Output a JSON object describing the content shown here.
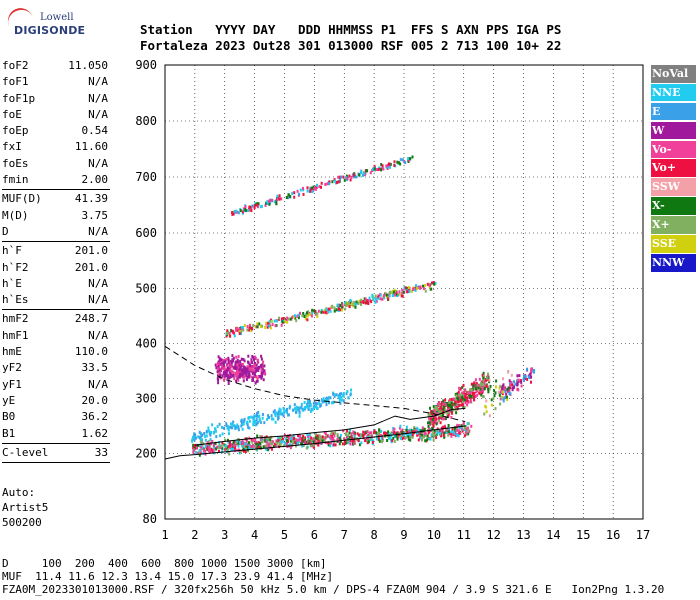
{
  "logo": {
    "line1": "Lowell",
    "line2": "DIGISONDE"
  },
  "header": {
    "line1": "Station   YYYY DAY   DDD HHMMSS P1  FFS S AXN PPS IGA PS",
    "line2": "Fortaleza 2023 Out28 301 013000 RSF 005 2 713 100 10+ 22"
  },
  "params": [
    [
      [
        "foF2",
        "11.050"
      ],
      [
        "foF1",
        "N/A"
      ],
      [
        "foF1p",
        "N/A"
      ],
      [
        "foE",
        "N/A"
      ],
      [
        "foEp",
        "0.54"
      ],
      [
        "fxI",
        "11.60"
      ],
      [
        "foEs",
        "N/A"
      ],
      [
        "fmin",
        "2.00"
      ]
    ],
    [
      [
        "MUF(D)",
        "41.39"
      ],
      [
        "M(D)",
        "3.75"
      ],
      [
        "D",
        "N/A"
      ]
    ],
    [
      [
        "h`F",
        "201.0"
      ],
      [
        "h`F2",
        "201.0"
      ],
      [
        "h`E",
        "N/A"
      ],
      [
        "h`Es",
        "N/A"
      ]
    ],
    [
      [
        "hmF2",
        "248.7"
      ],
      [
        "hmF1",
        "N/A"
      ],
      [
        "hmE",
        "110.0"
      ],
      [
        "yF2",
        "33.5"
      ],
      [
        "yF1",
        "N/A"
      ],
      [
        "yE",
        "20.0"
      ],
      [
        "B0",
        "36.2"
      ],
      [
        "B1",
        "1.62"
      ]
    ],
    [
      [
        "C-level",
        "33"
      ]
    ]
  ],
  "auto": {
    "line1": "Auto:",
    "line2": "Artist5",
    "line3": "500200"
  },
  "legend": [
    {
      "label": "NoVal",
      "color": "#808080"
    },
    {
      "label": "NNE",
      "color": "#22ccf0"
    },
    {
      "label": "E",
      "color": "#3aa0e8"
    },
    {
      "label": "W",
      "color": "#a0189c"
    },
    {
      "label": "Vo-",
      "color": "#f0409a"
    },
    {
      "label": "Vo+",
      "color": "#ee1040"
    },
    {
      "label": "SSW",
      "color": "#f4a0a8"
    },
    {
      "label": "X-",
      "color": "#107810"
    },
    {
      "label": "X+",
      "color": "#80b060"
    },
    {
      "label": "SSE",
      "color": "#d0d010"
    },
    {
      "label": "NNW",
      "color": "#1818c8"
    }
  ],
  "footer": {
    "line1": "D     100  200  400  600  800 1000 1500 3000 [km]",
    "line2": "MUF  11.4 11.6 12.3 13.4 15.0 17.3 23.9 41.4 [MHz]",
    "line3": "FZA0M_2023301013000.RSF / 320fx256h 50 kHz 5.0 km / DPS-4 FZA0M 904 / 3.9 S 321.6 E   Ion2Png 1.3.20"
  },
  "chart_data": {
    "type": "scatter",
    "title": "",
    "xlabel": "",
    "ylabel": "",
    "xlim": [
      1,
      17
    ],
    "ylim": [
      80,
      900
    ],
    "xticks": [
      1,
      2,
      3,
      4,
      5,
      6,
      7,
      8,
      9,
      10,
      11,
      12,
      13,
      14,
      15,
      16,
      17
    ],
    "yticks": [
      80,
      200,
      300,
      400,
      500,
      600,
      700,
      800,
      900
    ],
    "grid": true,
    "clusters": [
      {
        "name": "O-trace",
        "color": "#ee1040",
        "x": [
          1.9,
          11.2
        ],
        "y": [
          212,
          245
        ],
        "jitter": 16,
        "n": 900,
        "colors": [
          "#ee1040",
          "#f0409a",
          "#107810",
          "#80b060",
          "#22ccf0"
        ]
      },
      {
        "name": "O-trace upper",
        "color": "#ee1040",
        "x": [
          9.8,
          11.8
        ],
        "y": [
          265,
          335
        ],
        "jitter": 22,
        "n": 420,
        "colors": [
          "#ee1040",
          "#107810",
          "#80b060",
          "#f0409a"
        ]
      },
      {
        "name": "cyan spread",
        "color": "#22ccf0",
        "x": [
          1.9,
          7.2
        ],
        "y": [
          232,
          310
        ],
        "jitter": 14,
        "n": 260,
        "colors": [
          "#22ccf0",
          "#3aa0e8"
        ]
      },
      {
        "name": "2nd hop",
        "color": "#f0409a",
        "x": [
          3.0,
          10.0
        ],
        "y": [
          420,
          510
        ],
        "jitter": 9,
        "n": 320,
        "colors": [
          "#ee1040",
          "#107810",
          "#f0409a",
          "#22ccf0",
          "#d0d010",
          "#80b060"
        ]
      },
      {
        "name": "3rd hop",
        "color": "#f0409a",
        "x": [
          3.2,
          9.2
        ],
        "y": [
          638,
          735
        ],
        "jitter": 7,
        "n": 200,
        "colors": [
          "#ee1040",
          "#f0409a",
          "#22ccf0",
          "#3aa0e8",
          "#107810"
        ]
      },
      {
        "name": "W blob",
        "color": "#a0189c",
        "x": [
          2.7,
          4.3
        ],
        "y": [
          355,
          355
        ],
        "jitter": 28,
        "n": 320,
        "colors": [
          "#a0189c",
          "#a0189c",
          "#f0409a"
        ]
      },
      {
        "name": "12-13 MHz",
        "color": "#3aa0e8",
        "x": [
          12.2,
          13.3
        ],
        "y": [
          310,
          350
        ],
        "jitter": 18,
        "n": 90,
        "colors": [
          "#3aa0e8",
          "#ee1040",
          "#f0409a",
          "#a0189c"
        ]
      },
      {
        "name": "sparse",
        "color": "#107810",
        "x": [
          11.5,
          12.6
        ],
        "y": [
          290,
          340
        ],
        "jitter": 40,
        "n": 40,
        "colors": [
          "#107810",
          "#d0d010",
          "#80b060",
          "#f4a0a8"
        ]
      }
    ],
    "curves": [
      {
        "name": "profile-dashed",
        "dash": true,
        "x": [
          1,
          2,
          3,
          4,
          5,
          6,
          7,
          8,
          9,
          10,
          11.05
        ],
        "y": [
          395,
          360,
          335,
          318,
          305,
          297,
          292,
          287,
          282,
          272,
          258
        ]
      },
      {
        "name": "profile-solid",
        "dash": false,
        "x": [
          1.0,
          1.5,
          2,
          3,
          4,
          5,
          6,
          7,
          8,
          9,
          10,
          11.05
        ],
        "y": [
          190,
          196,
          198,
          203,
          208,
          213,
          218,
          224,
          230,
          236,
          243,
          250
        ]
      },
      {
        "name": "trace-fit",
        "dash": false,
        "x": [
          2.0,
          3,
          4,
          5,
          6,
          7,
          8,
          8.7,
          9.2,
          10,
          10.6,
          11.05
        ],
        "y": [
          215,
          222,
          228,
          232,
          238,
          243,
          252,
          268,
          262,
          268,
          280,
          282
        ]
      }
    ]
  }
}
